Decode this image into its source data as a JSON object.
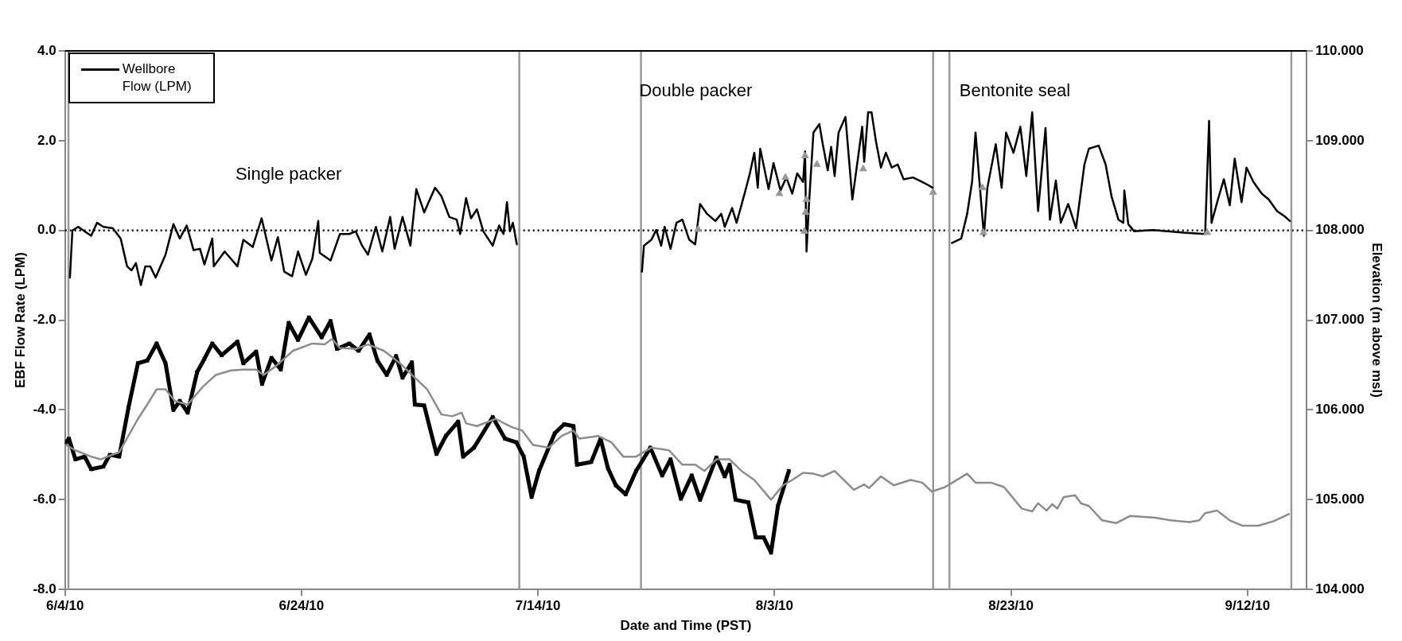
{
  "chart_data": {
    "type": "line",
    "xlabel": "Date and Time (PST)",
    "ylabel": "EBF Flow Rate (LPM)",
    "y2label": "Elevation (m above msl)",
    "xlim": [
      "2010-06-04",
      "2010-09-17"
    ],
    "xticks": [
      {
        "value": "2010-06-04",
        "label": "6/4/10"
      },
      {
        "value": "2010-06-24",
        "label": "6/24/10"
      },
      {
        "value": "2010-07-14",
        "label": "7/14/10"
      },
      {
        "value": "2010-08-03",
        "label": "8/3/10"
      },
      {
        "value": "2010-08-23",
        "label": "8/23/10"
      },
      {
        "value": "2010-09-12",
        "label": "9/12/10"
      }
    ],
    "ylim": [
      -8,
      4
    ],
    "yticks": [
      {
        "value": -8,
        "label": "-8.0"
      },
      {
        "value": -6,
        "label": "-6.0"
      },
      {
        "value": -4,
        "label": "-4.0"
      },
      {
        "value": -2,
        "label": "-2.0"
      },
      {
        "value": 0,
        "label": "0.0"
      },
      {
        "value": 2,
        "label": "2.0"
      },
      {
        "value": 4,
        "label": "4.0"
      }
    ],
    "y2lim": [
      104,
      110
    ],
    "y2ticks": [
      {
        "value": 104,
        "label": "104.000"
      },
      {
        "value": 105,
        "label": "105.000"
      },
      {
        "value": 106,
        "label": "106.000"
      },
      {
        "value": 107,
        "label": "107.000"
      },
      {
        "value": 108,
        "label": "108.000"
      },
      {
        "value": 109,
        "label": "109.000"
      },
      {
        "value": 110,
        "label": "110.000"
      }
    ],
    "grid": false,
    "legend": "top left",
    "marker": "none",
    "line_style": "solid",
    "ref_lines": [
      {
        "axis": "y",
        "value": 0,
        "color": "#000000",
        "line_style": "dotted"
      },
      {
        "axis": "x",
        "value": "2010-06-04T07:00",
        "color": "#999999"
      },
      {
        "axis": "x",
        "value": "2010-07-12T10:00",
        "color": "#999999"
      },
      {
        "axis": "x",
        "value": "2010-07-22T17:00",
        "color": "#999999"
      },
      {
        "axis": "x",
        "value": "2010-08-16T10:00",
        "color": "#999999"
      },
      {
        "axis": "x",
        "value": "2010-08-17T19:00",
        "color": "#999999"
      },
      {
        "axis": "x",
        "value": "2010-09-15T17:00",
        "color": "#999999"
      }
    ],
    "annotations": [
      "Single packer",
      "Double packer",
      "Bentonite seal"
    ],
    "series": [
      {
        "name": "Wellbore Flow (LPM)",
        "color": "#000000",
        "x": [
          "2010-06-04T10:00",
          "2010-06-04T15:00",
          "2010-06-05T03:00",
          "2010-06-06T05:00",
          "2010-06-06T17:00",
          "2010-06-07T06:00",
          "2010-06-08T01:00",
          "2010-06-08T17:00",
          "2010-06-09T06:00",
          "2010-06-09T15:00",
          "2010-06-10T00:00",
          "2010-06-10T10:00",
          "2010-06-10T19:00",
          "2010-06-11T05:00",
          "2010-06-11T16:00",
          "2010-06-12T12:00",
          "2010-06-13T04:00",
          "2010-06-13T17:00",
          "2010-06-14T07:00",
          "2010-06-14T21:00",
          "2010-06-15T10:00",
          "2010-06-15T19:00",
          "2010-06-16T11:00",
          "2010-06-16T14:00",
          "2010-06-17T12:00",
          "2010-06-18T14:00",
          "2010-06-19T02:00",
          "2010-06-19T21:00",
          "2010-06-20T15:00",
          "2010-06-21T11:00",
          "2010-06-22T00:00",
          "2010-06-22T13:00",
          "2010-06-23T05:00",
          "2010-06-23T17:00",
          "2010-06-24T09:00",
          "2010-06-24T22:00",
          "2010-06-25T10:00",
          "2010-06-25T13:00",
          "2010-06-26T11:00",
          "2010-06-27T06:00",
          "2010-06-28T01:00",
          "2010-06-28T14:00",
          "2010-06-29T03:00",
          "2010-06-29T15:00",
          "2010-06-30T07:00",
          "2010-06-30T20:00",
          "2010-07-01T12:00",
          "2010-07-01T21:00",
          "2010-07-02T13:00",
          "2010-07-03T05:00",
          "2010-07-03T17:00",
          "2010-07-04T09:00",
          "2010-07-04T18:00",
          "2010-07-05T07:00",
          "2010-07-05T20:00",
          "2010-07-06T12:00",
          "2010-07-07T03:00",
          "2010-07-07T10:00",
          "2010-07-07T22:00",
          "2010-07-08T08:00",
          "2010-07-08T20:00",
          "2010-07-09T09:00",
          "2010-07-10T04:00",
          "2010-07-10T17:00",
          "2010-07-11T02:00",
          "2010-07-11T09:00",
          "2010-07-11T15:00",
          "2010-07-11T21:00",
          "2010-07-12T05:00",
          "2010-07-17T00:00",
          "2010-07-22T19:00",
          "2010-07-22T23:00",
          "2010-07-23T14:00",
          "2010-07-24T00:00",
          "2010-07-24T10:00",
          "2010-07-24T17:00",
          "2010-07-25T05:00",
          "2010-07-25T17:00",
          "2010-07-26T05:00",
          "2010-07-26T19:00",
          "2010-07-27T07:00",
          "2010-07-27T17:00",
          "2010-07-28T07:00",
          "2010-07-29T00:00",
          "2010-07-29T12:00",
          "2010-07-29T19:00",
          "2010-07-30T10:00",
          "2010-07-30T19:00",
          "2010-07-31T12:00",
          "2010-07-31T22:00",
          "2010-08-01T07:00",
          "2010-08-01T14:00",
          "2010-08-01T19:00",
          "2010-08-02T12:00",
          "2010-08-02T22:00",
          "2010-08-03T12:00",
          "2010-08-04T00:00",
          "2010-08-04T12:00",
          "2010-08-04T22:00",
          "2010-08-05T10:00",
          "2010-08-05T14:00",
          "2010-08-05T17:00",
          "2010-08-05T22:00",
          "2010-08-06T07:00",
          "2010-08-06T19:00",
          "2010-08-07T02:00",
          "2010-08-07T12:00",
          "2010-08-07T19:00",
          "2010-08-08T02:00",
          "2010-08-08T10:00",
          "2010-08-09T00:00",
          "2010-08-09T14:00",
          "2010-08-10T10:00",
          "2010-08-10T14:00",
          "2010-08-10T22:00",
          "2010-08-11T05:00",
          "2010-08-11T14:00",
          "2010-08-12T00:00",
          "2010-08-12T10:00",
          "2010-08-12T22:00",
          "2010-08-13T10:00",
          "2010-08-13T22:00",
          "2010-08-14T17:00",
          "2010-08-15T12:00",
          "2010-08-16T00:00",
          "2010-08-16T09:00",
          "2010-08-17T00:00",
          "2010-08-18T00:00",
          "2010-08-18T19:00",
          "2010-08-19T07:00",
          "2010-08-19T17:00",
          "2010-08-20T00:00",
          "2010-08-20T07:00",
          "2010-08-20T17:00",
          "2010-08-21T00:00",
          "2010-08-21T17:00",
          "2010-08-22T05:00",
          "2010-08-22T14:00",
          "2010-08-23T05:00",
          "2010-08-23T19:00",
          "2010-08-24T07:00",
          "2010-08-24T19:00",
          "2010-08-25T07:00",
          "2010-08-25T22:00",
          "2010-08-26T07:00",
          "2010-08-26T19:00",
          "2010-08-27T05:00",
          "2010-08-27T20:00",
          "2010-08-28T12:00",
          "2010-08-29T05:00",
          "2010-08-29T14:00",
          "2010-08-30T10:00",
          "2010-08-31T00:00",
          "2010-08-31T12:00",
          "2010-09-01T02:00",
          "2010-09-01T12:00",
          "2010-09-01T14:00",
          "2010-09-01T22:00",
          "2010-09-02T10:00",
          "2010-09-04T00:00",
          "2010-09-06T14:00",
          "2010-09-08T10:00",
          "2010-09-08T18:00",
          "2010-09-08T23:00",
          "2010-09-09T12:00",
          "2010-09-10T00:00",
          "2010-09-10T12:00",
          "2010-09-10T22:00",
          "2010-09-11T12:00",
          "2010-09-11T22:00",
          "2010-09-12T12:00",
          "2010-09-13T05:00",
          "2010-09-13T19:00",
          "2010-09-14T12:00",
          "2010-09-15T05:00",
          "2010-09-15T14:00"
        ],
        "values": [
          -1.05,
          0.0,
          0.08,
          -0.12,
          0.17,
          0.08,
          0.05,
          -0.18,
          -0.8,
          -0.89,
          -0.73,
          -1.22,
          -0.8,
          -0.8,
          -1.05,
          -0.54,
          0.14,
          -0.18,
          0.11,
          -0.44,
          -0.41,
          -0.76,
          -0.18,
          -0.8,
          -0.47,
          -0.8,
          -0.21,
          -0.37,
          0.27,
          -0.67,
          -0.15,
          -0.92,
          -1.02,
          -0.47,
          -0.99,
          -0.63,
          0.21,
          -0.5,
          -0.67,
          -0.08,
          -0.08,
          -0.02,
          -0.34,
          -0.54,
          0.08,
          -0.47,
          0.3,
          -0.41,
          0.3,
          -0.34,
          0.92,
          0.4,
          0.63,
          0.95,
          0.76,
          0.3,
          0.24,
          -0.08,
          0.72,
          0.27,
          0.47,
          -0.02,
          -0.34,
          0.11,
          -0.08,
          0.63,
          -0.02,
          0.17,
          -0.31,
          null,
          -0.92,
          -0.34,
          -0.21,
          0.01,
          -0.34,
          0.08,
          -0.41,
          0.17,
          0.24,
          -0.21,
          -0.31,
          0.59,
          0.37,
          0.21,
          0.37,
          0.08,
          0.5,
          0.17,
          0.85,
          1.27,
          1.73,
          0.95,
          1.82,
          0.92,
          1.5,
          0.89,
          1.18,
          0.82,
          1.27,
          1.08,
          1.76,
          -0.47,
          0.59,
          2.18,
          2.37,
          1.92,
          1.34,
          1.86,
          1.21,
          2.18,
          2.53,
          0.69,
          2.31,
          1.53,
          2.63,
          2.63,
          1.98,
          1.4,
          1.73,
          1.4,
          1.47,
          1.14,
          1.18,
          1.08,
          1.01,
          0.95,
          null,
          -0.28,
          -0.18,
          0.37,
          1.08,
          2.18,
          1.21,
          -0.12,
          0.95,
          1.92,
          0.95,
          2.18,
          1.73,
          2.31,
          1.21,
          2.63,
          0.43,
          2.28,
          0.24,
          1.11,
          0.17,
          0.59,
          0.05,
          1.47,
          1.82,
          1.89,
          1.47,
          0.76,
          0.24,
          0.17,
          0.89,
          0.14,
          -0.02,
          0.01,
          -0.05,
          -0.08,
          2.44,
          0.17,
          0.69,
          1.14,
          0.56,
          1.6,
          0.63,
          1.4,
          1.08,
          0.82,
          0.69,
          0.43,
          0.3,
          0.21
        ]
      },
      {
        "color": "#000000",
        "axis": "y2",
        "marker": "cross",
        "x": [
          "2010-06-04T02:00",
          "2010-06-04T08:00",
          "2010-06-04T21:00",
          "2010-06-05T16:00",
          "2010-06-06T05:00",
          "2010-06-07T06:00",
          "2010-06-07T19:00",
          "2010-06-08T14:00",
          "2010-06-09T09:00",
          "2010-06-10T04:00",
          "2010-06-10T23:00",
          "2010-06-11T18:00",
          "2010-06-12T12:00",
          "2010-06-13T04:00",
          "2010-06-13T17:00",
          "2010-06-14T09:00",
          "2010-06-15T04:00",
          "2010-06-15T19:00",
          "2010-06-16T11:00",
          "2010-06-17T06:00",
          "2010-06-18T14:00",
          "2010-06-19T02:00",
          "2010-06-20T04:00",
          "2010-06-20T16:00",
          "2010-06-21T11:00",
          "2010-06-22T06:00",
          "2010-06-22T22:00",
          "2010-06-23T17:00",
          "2010-06-24T15:00",
          "2010-06-25T17:00",
          "2010-06-26T11:00",
          "2010-06-27T00:00",
          "2010-06-28T01:00",
          "2010-06-28T20:00",
          "2010-06-29T18:00",
          "2010-06-30T10:00",
          "2010-07-01T05:00",
          "2010-07-02T00:00",
          "2010-07-02T13:00",
          "2010-07-03T08:00",
          "2010-07-03T14:00",
          "2010-07-04T09:00",
          "2010-07-05T10:00",
          "2010-07-06T05:00",
          "2010-07-07T06:00",
          "2010-07-07T16:00",
          "2010-07-08T14:00",
          "2010-07-10T04:00",
          "2010-07-11T05:00",
          "2010-07-12T04:00",
          "2010-07-12T19:00",
          "2010-07-13T11:00",
          "2010-07-14T02:00",
          "2010-07-15T10:00",
          "2010-07-16T05:00",
          "2010-07-17T00:00",
          "2010-07-17T07:00",
          "2010-07-18T12:00",
          "2010-07-19T07:00",
          "2010-07-19T22:00",
          "2010-07-20T14:00",
          "2010-07-21T10:00",
          "2010-07-22T07:00",
          "2010-07-23T12:00",
          "2010-07-24T12:00",
          "2010-07-25T05:00",
          "2010-07-26T02:00",
          "2010-07-27T00:00",
          "2010-07-27T17:00",
          "2010-07-29T02:00",
          "2010-07-29T19:00",
          "2010-07-30T05:00",
          "2010-07-30T17:00",
          "2010-07-31T19:00",
          "2010-08-01T10:00",
          "2010-08-02T02:00",
          "2010-08-02T17:00",
          "2010-08-03T07:00",
          "2010-08-04T05:00"
        ],
        "values": [
          105.64,
          105.68,
          105.45,
          105.48,
          105.34,
          105.37,
          105.5,
          105.48,
          106.03,
          106.52,
          106.55,
          106.74,
          106.52,
          106.0,
          106.1,
          105.97,
          106.42,
          106.57,
          106.74,
          106.61,
          106.76,
          106.52,
          106.65,
          106.29,
          106.58,
          106.45,
          106.97,
          106.78,
          107.03,
          106.81,
          106.99,
          106.68,
          106.74,
          106.66,
          106.84,
          106.55,
          106.39,
          106.6,
          106.36,
          106.53,
          106.06,
          106.05,
          105.51,
          105.71,
          105.87,
          105.48,
          105.58,
          105.92,
          105.68,
          105.64,
          105.48,
          105.03,
          105.32,
          105.74,
          105.84,
          105.82,
          105.39,
          105.42,
          105.68,
          105.35,
          105.16,
          105.06,
          105.32,
          105.58,
          105.27,
          105.45,
          105.01,
          105.27,
          105.0,
          105.47,
          105.26,
          105.39,
          105.0,
          104.97,
          104.58,
          104.58,
          104.41,
          104.93,
          105.32
        ]
      },
      {
        "color": "#8c8c8c",
        "axis": "y2",
        "x": [
          "2010-06-04T02:00",
          "2010-06-04T21:00",
          "2010-06-06T05:00",
          "2010-06-07T00:00",
          "2010-06-08T14:00",
          "2010-06-10T04:00",
          "2010-06-10T23:00",
          "2010-06-11T18:00",
          "2010-06-12T12:00",
          "2010-06-13T07:00",
          "2010-06-14T09:00",
          "2010-06-15T16:00",
          "2010-06-16T18:00",
          "2010-06-18T01:00",
          "2010-06-19T02:00",
          "2010-06-20T04:00",
          "2010-06-20T19:00",
          "2010-06-21T18:00",
          "2010-06-23T07:00",
          "2010-06-24T22:00",
          "2010-06-25T23:00",
          "2010-06-26T14:00",
          "2010-06-27T06:00",
          "2010-06-28T14:00",
          "2010-06-29T15:00",
          "2010-06-30T23:00",
          "2010-07-02T06:00",
          "2010-07-03T14:00",
          "2010-07-04T15:00",
          "2010-07-05T20:00",
          "2010-07-06T18:00",
          "2010-07-07T13:00",
          "2010-07-07T22:00",
          "2010-07-08T20:00",
          "2010-07-10T10:00",
          "2010-07-11T18:00",
          "2010-07-12T16:00",
          "2010-07-13T14:00",
          "2010-07-14T22:00",
          "2010-07-16T00:00",
          "2010-07-17T00:00",
          "2010-07-17T12:00",
          "2010-07-19T02:00",
          "2010-07-20T05:00",
          "2010-07-21T05:00",
          "2010-07-22T07:00",
          "2010-07-23T14:00",
          "2010-07-25T02:00",
          "2010-07-26T05:00",
          "2010-07-27T07:00",
          "2010-07-28T02:00",
          "2010-07-29T02:00",
          "2010-07-30T05:00",
          "2010-07-31T05:00",
          "2010-08-01T07:00",
          "2010-08-02T17:00",
          "2010-08-03T17:00",
          "2010-08-04T12:00",
          "2010-08-05T10:00",
          "2010-08-06T07:00",
          "2010-08-07T02:00",
          "2010-08-08T02:00",
          "2010-08-09T17:00",
          "2010-08-10T14:00",
          "2010-08-11T00:00",
          "2010-08-12T00:00",
          "2010-08-13T02:00",
          "2010-08-14T12:00",
          "2010-08-15T12:00",
          "2010-08-16T07:00",
          "2010-08-17T10:00",
          "2010-08-18T07:00",
          "2010-08-19T07:00",
          "2010-08-20T00:00",
          "2010-08-21T07:00",
          "2010-08-22T10:00",
          "2010-08-23T22:00",
          "2010-08-24T19:00",
          "2010-08-25T07:00",
          "2010-08-26T00:00",
          "2010-08-26T12:00",
          "2010-08-26T22:00",
          "2010-08-27T11:00",
          "2010-08-28T10:00",
          "2010-08-28T22:00",
          "2010-08-29T14:00",
          "2010-08-30T17:00",
          "2010-08-31T22:00",
          "2010-09-02T02:00",
          "2010-09-04T05:00",
          "2010-09-05T12:00",
          "2010-09-07T02:00",
          "2010-09-07T22:00",
          "2010-09-08T10:00",
          "2010-09-09T10:00",
          "2010-09-10T12:00",
          "2010-09-11T14:00",
          "2010-09-12T22:00",
          "2010-09-14T05:00",
          "2010-09-15T12:00"
        ],
        "values": [
          105.61,
          105.55,
          105.48,
          105.45,
          105.53,
          105.9,
          106.06,
          106.23,
          106.23,
          106.1,
          106.06,
          106.26,
          106.39,
          106.44,
          106.45,
          106.45,
          106.39,
          106.48,
          106.66,
          106.74,
          106.73,
          106.79,
          106.69,
          106.68,
          106.73,
          106.66,
          106.53,
          106.36,
          106.23,
          105.95,
          105.93,
          105.97,
          105.85,
          105.82,
          105.9,
          105.81,
          105.77,
          105.61,
          105.58,
          105.71,
          105.77,
          105.68,
          105.71,
          105.64,
          105.48,
          105.48,
          105.58,
          105.55,
          105.39,
          105.39,
          105.32,
          105.45,
          105.45,
          105.32,
          105.22,
          105.0,
          105.16,
          105.22,
          105.3,
          105.29,
          105.26,
          105.32,
          105.11,
          105.17,
          105.13,
          105.26,
          105.16,
          105.22,
          105.19,
          105.09,
          105.14,
          105.21,
          105.29,
          105.19,
          105.19,
          105.14,
          104.9,
          104.87,
          104.96,
          104.88,
          104.95,
          104.9,
          105.03,
          105.05,
          104.96,
          104.93,
          104.77,
          104.74,
          104.82,
          104.8,
          104.77,
          104.75,
          104.77,
          104.85,
          104.88,
          104.77,
          104.71,
          104.71,
          104.76,
          104.84
        ]
      },
      {
        "type": "scatter",
        "color": "#999999",
        "marker": "triangle",
        "x": [
          "2010-07-27T13:00",
          "2010-08-03T10:00",
          "2010-08-03T22:00",
          "2010-08-05T14:00",
          "2010-08-05T17:00",
          "2010-08-05T15:00",
          "2010-08-05T13:00",
          "2010-08-06T14:00",
          "2010-08-10T12:00",
          "2010-08-16T10:00",
          "2010-08-20T14:00",
          "2010-08-20T16:00",
          "2010-09-08T14:00"
        ],
        "values": [
          0.02,
          0.82,
          1.18,
          1.66,
          0.69,
          0.4,
          -0.02,
          1.47,
          1.37,
          0.85,
          0.95,
          -0.05,
          -0.05
        ]
      }
    ]
  }
}
